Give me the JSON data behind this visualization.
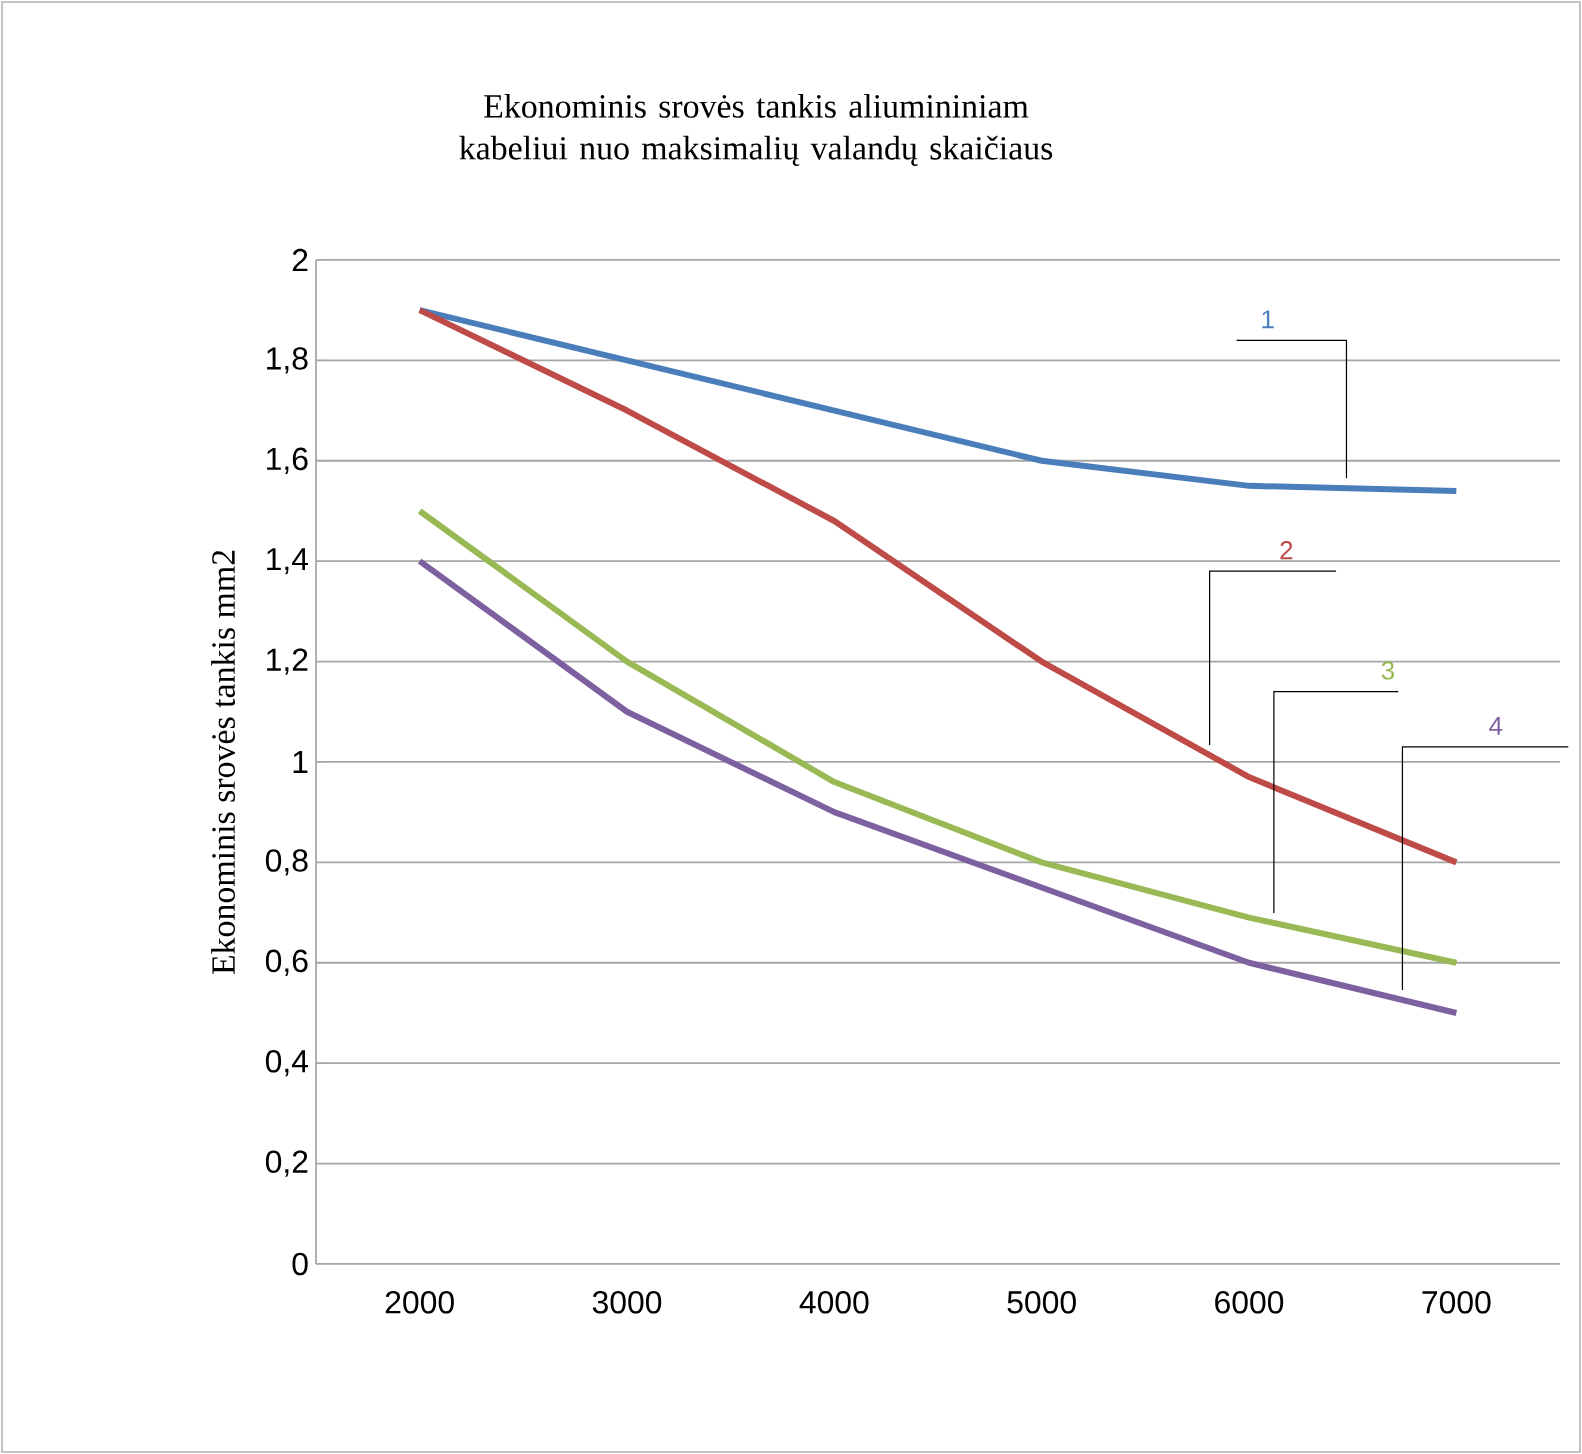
{
  "chart_data": {
    "type": "line",
    "title": "Ekonominis srovės tankis aliumininiam kabeliui nuo maksimalių valandų skaičiaus",
    "ylabel": "Ekonominis srovės tankis mm2",
    "categories": [
      "2000",
      "3000",
      "4000",
      "5000",
      "6000",
      "7000"
    ],
    "ylim": [
      0,
      2
    ],
    "yticks": [
      0,
      {
        "value": 0.2,
        "label": "0,2"
      },
      {
        "value": 0.4,
        "label": "0,4"
      },
      {
        "value": 0.6,
        "label": "0,6"
      },
      {
        "value": 0.8,
        "label": "0,8"
      },
      1,
      {
        "value": 1.2,
        "label": "1,2"
      },
      {
        "value": 1.4,
        "label": "1,4"
      },
      {
        "value": 1.6,
        "label": "1,6"
      },
      {
        "value": 1.8,
        "label": "1,8"
      },
      2
    ],
    "grid": "y",
    "legend": false,
    "marker": "none",
    "line_style": "solid",
    "series": [
      {
        "name": "1",
        "color": "#4a7ebb",
        "values": [
          1.9,
          1.8,
          1.7,
          1.6,
          1.55,
          1.54
        ]
      },
      {
        "name": "2",
        "color": "#be4b48",
        "values": [
          1.9,
          1.7,
          1.48,
          1.2,
          0.97,
          0.8
        ]
      },
      {
        "name": "3",
        "color": "#98b954",
        "values": [
          1.5,
          1.2,
          0.96,
          0.8,
          0.69,
          0.6
        ]
      },
      {
        "name": "4",
        "color": "#7d60a0",
        "values": [
          1.4,
          1.1,
          0.9,
          0.75,
          0.6,
          0.5
        ]
      }
    ]
  }
}
